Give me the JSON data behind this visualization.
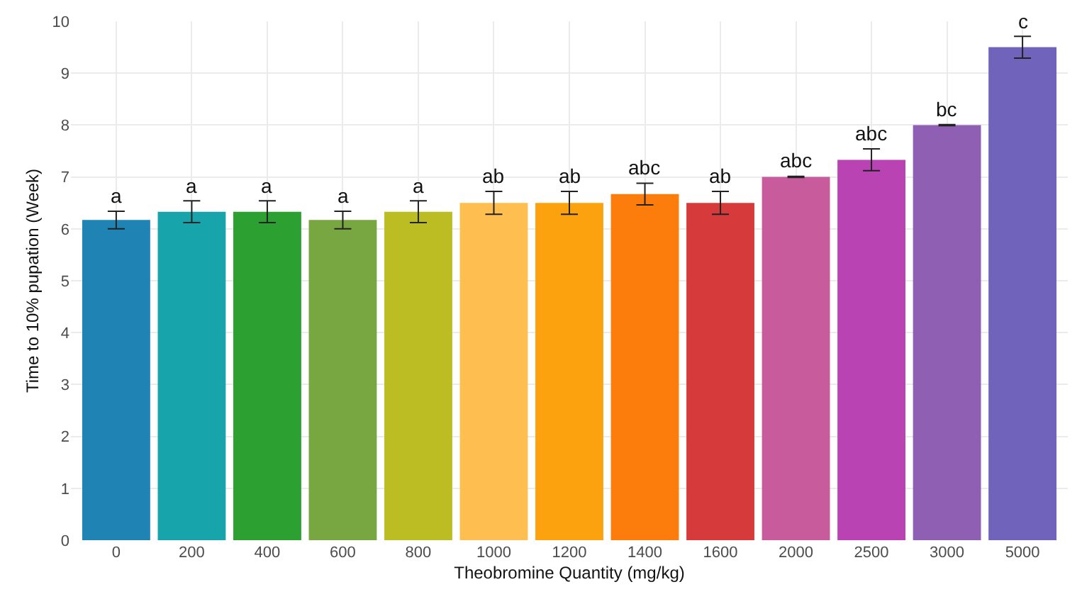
{
  "chart_data": {
    "type": "bar",
    "xlabel": "Theobromine Quantity (mg/kg)",
    "ylabel": "Time to 10% pupation (Week)",
    "categories": [
      "0",
      "200",
      "400",
      "600",
      "800",
      "1000",
      "1200",
      "1400",
      "1600",
      "2000",
      "2500",
      "3000",
      "5000"
    ],
    "values": [
      6.17,
      6.33,
      6.33,
      6.17,
      6.33,
      6.5,
      6.5,
      6.67,
      6.5,
      7.0,
      7.33,
      8.0,
      9.5
    ],
    "errors": [
      0.17,
      0.21,
      0.21,
      0.17,
      0.21,
      0.22,
      0.22,
      0.21,
      0.22,
      0.01,
      0.21,
      0.01,
      0.21
    ],
    "value_labels": [
      "a",
      "a",
      "a",
      "a",
      "a",
      "ab",
      "ab",
      "abc",
      "ab",
      "abc",
      "abc",
      "bc",
      "c"
    ],
    "colors": [
      "#1f83b4",
      "#17a5ab",
      "#2ca030",
      "#78a641",
      "#bcbd22",
      "#ffbf50",
      "#fca20f",
      "#fc7d0b",
      "#d63a3a",
      "#c85b9b",
      "#ba43b4",
      "#8f5fb3",
      "#7063bc"
    ],
    "ylim": [
      0,
      10
    ],
    "yticks": [
      0,
      1,
      2,
      3,
      4,
      5,
      6,
      7,
      8,
      9,
      10
    ],
    "grid": true
  }
}
